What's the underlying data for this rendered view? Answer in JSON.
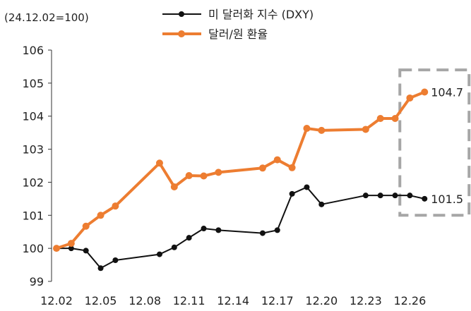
{
  "chart_data": {
    "type": "line",
    "title": "",
    "unit_note": "(24.12.02=100)",
    "xlabel": "",
    "ylabel": "",
    "ylim": [
      99,
      106
    ],
    "yticks": [
      99,
      100,
      101,
      102,
      103,
      104,
      105,
      106
    ],
    "x_days": [
      2,
      3,
      4,
      5,
      6,
      9,
      10,
      11,
      12,
      13,
      16,
      17,
      18,
      19,
      20,
      23,
      24,
      25,
      26,
      27
    ],
    "x_tick_labels": [
      "12.02",
      "12.05",
      "12.08",
      "12.11",
      "12.14",
      "12.17",
      "12.20",
      "12.23",
      "12.26"
    ],
    "x_tick_days": [
      2,
      5,
      8,
      11,
      14,
      17,
      20,
      23,
      26
    ],
    "grid": false,
    "legend_position": "top",
    "series": [
      {
        "name": "미 달러화 지수 (DXY)",
        "color": "#111111",
        "values": [
          100.0,
          100.0,
          99.93,
          99.4,
          99.64,
          99.82,
          100.03,
          100.32,
          100.6,
          100.55,
          100.46,
          100.55,
          101.65,
          101.85,
          101.33,
          101.6,
          101.6,
          101.6,
          101.6,
          101.5
        ],
        "end_label": "101.5"
      },
      {
        "name": "달러/원 환율",
        "color": "#ED7D31",
        "values": [
          100.0,
          100.15,
          100.67,
          101.0,
          101.28,
          102.58,
          101.86,
          102.2,
          102.19,
          102.3,
          102.43,
          102.68,
          102.44,
          103.63,
          103.57,
          103.6,
          103.93,
          103.93,
          104.55,
          104.73
        ],
        "end_label": "104.7"
      }
    ],
    "highlight_box_color": "#a6a6a6"
  }
}
